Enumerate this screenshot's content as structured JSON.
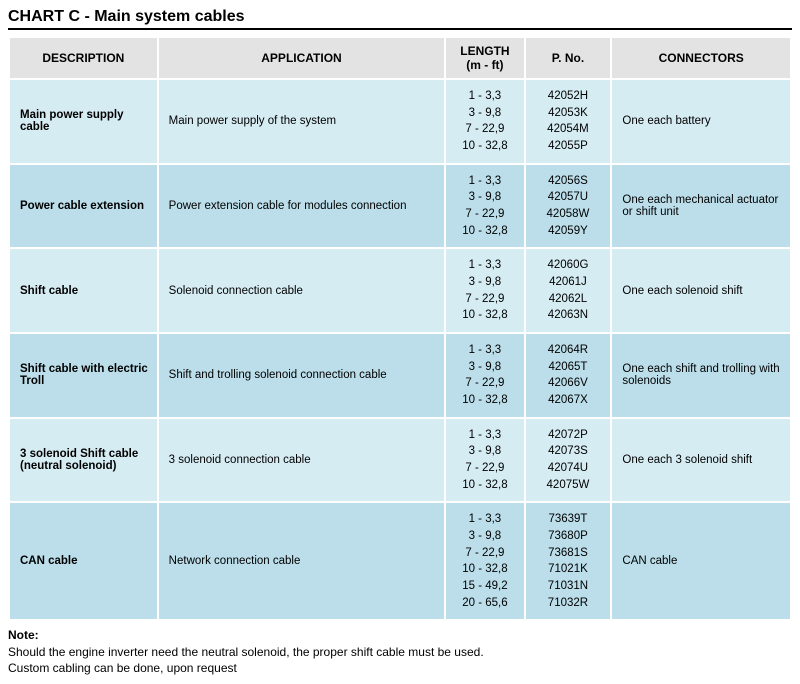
{
  "title": "CHART C - Main system cables",
  "colors": {
    "header_bg": "#e3e3e3",
    "row_even_bg": "#d6ecf3",
    "row_odd_bg": "#bbdeea",
    "border_spacing_bg": "#ffffff",
    "text": "#000000",
    "title_underline": "#000000"
  },
  "columns": [
    {
      "key": "description",
      "label": "DESCRIPTION",
      "align": "left",
      "class": "col-desc"
    },
    {
      "key": "application",
      "label": "APPLICATION",
      "align": "left",
      "class": "col-app"
    },
    {
      "key": "length",
      "label": "LENGTH\n(m - ft)",
      "align": "center",
      "class": "col-len"
    },
    {
      "key": "pno",
      "label": "P. No.",
      "align": "center",
      "class": "col-pno"
    },
    {
      "key": "connectors",
      "label": "CONNECTORS",
      "align": "left",
      "class": "col-conn"
    }
  ],
  "rows": [
    {
      "description": "Main power supply cable",
      "application": "Main power supply of the system",
      "length": "1 - 3,3\n3 - 9,8\n7 - 22,9\n10 - 32,8",
      "pno": "42052H\n42053K\n42054M\n42055P",
      "connectors": "One each battery"
    },
    {
      "description": "Power cable extension",
      "application": "Power extension cable for modules connection",
      "length": "1 - 3,3\n3 - 9,8\n7 - 22,9\n10 - 32,8",
      "pno": "42056S\n42057U\n42058W\n42059Y",
      "connectors": "One each mechanical actuator or shift unit"
    },
    {
      "description": "Shift cable",
      "application": "Solenoid connection cable",
      "length": "1 - 3,3\n3 - 9,8\n7 - 22,9\n10 - 32,8",
      "pno": "42060G\n42061J\n42062L\n42063N",
      "connectors": "One each solenoid shift"
    },
    {
      "description": "Shift cable with electric Troll",
      "application": "Shift and trolling solenoid connection cable",
      "length": "1 - 3,3\n3 - 9,8\n7 - 22,9\n10 - 32,8",
      "pno": "42064R\n42065T\n42066V\n42067X",
      "connectors": "One each shift and trolling with solenoids"
    },
    {
      "description": "3 solenoid Shift cable (neutral solenoid)",
      "application": "3 solenoid connection cable",
      "length": "1 - 3,3\n3 - 9,8\n7 - 22,9\n10 - 32,8",
      "pno": "42072P\n42073S\n42074U\n42075W",
      "connectors": "One each 3 solenoid shift"
    },
    {
      "description": "CAN cable",
      "application": "Network connection cable",
      "length": "1 - 3,3\n3 - 9,8\n7 - 22,9\n10 - 32,8\n15 - 49,2\n20 - 65,6",
      "pno": "73639T\n73680P\n73681S\n71021K\n71031N\n71032R",
      "connectors": "CAN cable"
    }
  ],
  "note": {
    "label": "Note:",
    "line1": "Should the engine inverter need the neutral solenoid, the proper shift cable must be used.",
    "line2": "Custom cabling can be done, upon request"
  }
}
